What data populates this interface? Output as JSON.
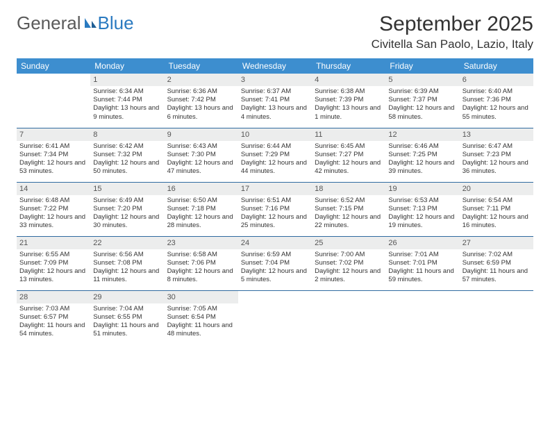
{
  "logo": {
    "part1": "General",
    "part2": "Blue"
  },
  "title": "September 2025",
  "location": "Civitella San Paolo, Lazio, Italy",
  "colors": {
    "header_bg": "#3d8ecf",
    "header_text": "#ffffff",
    "daynum_bg": "#eceded",
    "daynum_text": "#555555",
    "separator": "#2f6aa0",
    "logo_gray": "#5a5a5a",
    "logo_blue": "#2a7ac0",
    "body_text": "#333333"
  },
  "weekdays": [
    "Sunday",
    "Monday",
    "Tuesday",
    "Wednesday",
    "Thursday",
    "Friday",
    "Saturday"
  ],
  "weeks": [
    [
      {
        "blank": true
      },
      {
        "num": "1",
        "sunrise": "6:34 AM",
        "sunset": "7:44 PM",
        "daylight": "13 hours and 9 minutes."
      },
      {
        "num": "2",
        "sunrise": "6:36 AM",
        "sunset": "7:42 PM",
        "daylight": "13 hours and 6 minutes."
      },
      {
        "num": "3",
        "sunrise": "6:37 AM",
        "sunset": "7:41 PM",
        "daylight": "13 hours and 4 minutes."
      },
      {
        "num": "4",
        "sunrise": "6:38 AM",
        "sunset": "7:39 PM",
        "daylight": "13 hours and 1 minute."
      },
      {
        "num": "5",
        "sunrise": "6:39 AM",
        "sunset": "7:37 PM",
        "daylight": "12 hours and 58 minutes."
      },
      {
        "num": "6",
        "sunrise": "6:40 AM",
        "sunset": "7:36 PM",
        "daylight": "12 hours and 55 minutes."
      }
    ],
    [
      {
        "num": "7",
        "sunrise": "6:41 AM",
        "sunset": "7:34 PM",
        "daylight": "12 hours and 53 minutes."
      },
      {
        "num": "8",
        "sunrise": "6:42 AM",
        "sunset": "7:32 PM",
        "daylight": "12 hours and 50 minutes."
      },
      {
        "num": "9",
        "sunrise": "6:43 AM",
        "sunset": "7:30 PM",
        "daylight": "12 hours and 47 minutes."
      },
      {
        "num": "10",
        "sunrise": "6:44 AM",
        "sunset": "7:29 PM",
        "daylight": "12 hours and 44 minutes."
      },
      {
        "num": "11",
        "sunrise": "6:45 AM",
        "sunset": "7:27 PM",
        "daylight": "12 hours and 42 minutes."
      },
      {
        "num": "12",
        "sunrise": "6:46 AM",
        "sunset": "7:25 PM",
        "daylight": "12 hours and 39 minutes."
      },
      {
        "num": "13",
        "sunrise": "6:47 AM",
        "sunset": "7:23 PM",
        "daylight": "12 hours and 36 minutes."
      }
    ],
    [
      {
        "num": "14",
        "sunrise": "6:48 AM",
        "sunset": "7:22 PM",
        "daylight": "12 hours and 33 minutes."
      },
      {
        "num": "15",
        "sunrise": "6:49 AM",
        "sunset": "7:20 PM",
        "daylight": "12 hours and 30 minutes."
      },
      {
        "num": "16",
        "sunrise": "6:50 AM",
        "sunset": "7:18 PM",
        "daylight": "12 hours and 28 minutes."
      },
      {
        "num": "17",
        "sunrise": "6:51 AM",
        "sunset": "7:16 PM",
        "daylight": "12 hours and 25 minutes."
      },
      {
        "num": "18",
        "sunrise": "6:52 AM",
        "sunset": "7:15 PM",
        "daylight": "12 hours and 22 minutes."
      },
      {
        "num": "19",
        "sunrise": "6:53 AM",
        "sunset": "7:13 PM",
        "daylight": "12 hours and 19 minutes."
      },
      {
        "num": "20",
        "sunrise": "6:54 AM",
        "sunset": "7:11 PM",
        "daylight": "12 hours and 16 minutes."
      }
    ],
    [
      {
        "num": "21",
        "sunrise": "6:55 AM",
        "sunset": "7:09 PM",
        "daylight": "12 hours and 13 minutes."
      },
      {
        "num": "22",
        "sunrise": "6:56 AM",
        "sunset": "7:08 PM",
        "daylight": "12 hours and 11 minutes."
      },
      {
        "num": "23",
        "sunrise": "6:58 AM",
        "sunset": "7:06 PM",
        "daylight": "12 hours and 8 minutes."
      },
      {
        "num": "24",
        "sunrise": "6:59 AM",
        "sunset": "7:04 PM",
        "daylight": "12 hours and 5 minutes."
      },
      {
        "num": "25",
        "sunrise": "7:00 AM",
        "sunset": "7:02 PM",
        "daylight": "12 hours and 2 minutes."
      },
      {
        "num": "26",
        "sunrise": "7:01 AM",
        "sunset": "7:01 PM",
        "daylight": "11 hours and 59 minutes."
      },
      {
        "num": "27",
        "sunrise": "7:02 AM",
        "sunset": "6:59 PM",
        "daylight": "11 hours and 57 minutes."
      }
    ],
    [
      {
        "num": "28",
        "sunrise": "7:03 AM",
        "sunset": "6:57 PM",
        "daylight": "11 hours and 54 minutes."
      },
      {
        "num": "29",
        "sunrise": "7:04 AM",
        "sunset": "6:55 PM",
        "daylight": "11 hours and 51 minutes."
      },
      {
        "num": "30",
        "sunrise": "7:05 AM",
        "sunset": "6:54 PM",
        "daylight": "11 hours and 48 minutes."
      },
      {
        "blank": true
      },
      {
        "blank": true
      },
      {
        "blank": true
      },
      {
        "blank": true
      }
    ]
  ],
  "labels": {
    "sunrise": "Sunrise:",
    "sunset": "Sunset:",
    "daylight": "Daylight:"
  }
}
